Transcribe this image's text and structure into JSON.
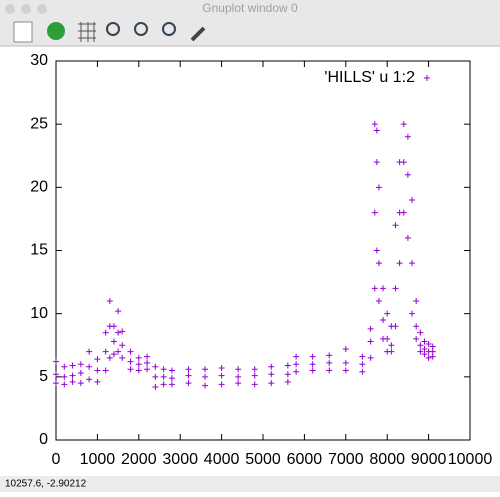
{
  "window_title": "Gnuplot window 0",
  "status": "10257.6, -2.90212",
  "chart_data": {
    "type": "scatter",
    "marker": "+",
    "color": "#9400d3",
    "legend": {
      "label": "'HILLS' u 1:2",
      "position": "top-right"
    },
    "xlim": [
      0,
      10000
    ],
    "xticks": [
      0,
      1000,
      2000,
      3000,
      4000,
      5000,
      6000,
      7000,
      8000,
      9000,
      10000
    ],
    "ylim": [
      0,
      30
    ],
    "yticks": [
      0,
      5,
      10,
      15,
      20,
      25,
      30
    ],
    "x": [
      0,
      0,
      0,
      200,
      200,
      200,
      400,
      400,
      400,
      600,
      600,
      600,
      800,
      800,
      800,
      1000,
      1000,
      1000,
      1200,
      1200,
      1200,
      1300,
      1300,
      1300,
      1400,
      1400,
      1400,
      1500,
      1500,
      1500,
      1600,
      1600,
      1600,
      1800,
      1800,
      1800,
      2000,
      2000,
      2000,
      2200,
      2200,
      2200,
      2400,
      2400,
      2400,
      2600,
      2600,
      2600,
      2800,
      2800,
      2800,
      3200,
      3200,
      3200,
      3600,
      3600,
      3600,
      4000,
      4000,
      4000,
      4400,
      4400,
      4400,
      4800,
      4800,
      4800,
      5200,
      5200,
      5200,
      5600,
      5600,
      5600,
      5800,
      5800,
      5800,
      6200,
      6200,
      6200,
      6600,
      6600,
      6600,
      7000,
      7000,
      7000,
      7400,
      7400,
      7400,
      7600,
      7600,
      7600,
      7700,
      7700,
      7700,
      7750,
      7750,
      7750,
      7800,
      7800,
      7800,
      7900,
      7900,
      7900,
      8000,
      8000,
      8000,
      8100,
      8100,
      8100,
      8200,
      8200,
      8200,
      8300,
      8300,
      8300,
      8400,
      8400,
      8400,
      8500,
      8500,
      8500,
      8600,
      8600,
      8600,
      8700,
      8700,
      8700,
      8800,
      8800,
      8800,
      8900,
      8900,
      8900,
      9000,
      9000,
      9000,
      9100,
      9100,
      9100
    ],
    "values": [
      4.5,
      5.2,
      6.2,
      4.4,
      5.0,
      5.8,
      4.6,
      5.1,
      5.9,
      4.5,
      5.3,
      6.0,
      4.8,
      5.8,
      7.0,
      4.6,
      5.5,
      6.4,
      5.5,
      7.0,
      8.5,
      6.5,
      9.0,
      11.0,
      6.8,
      7.8,
      9.0,
      7.0,
      8.5,
      10.2,
      6.5,
      7.5,
      8.6,
      5.6,
      6.2,
      7.0,
      5.5,
      6.0,
      6.5,
      5.6,
      6.1,
      6.6,
      4.2,
      5.0,
      5.8,
      4.4,
      5.0,
      5.6,
      4.4,
      4.9,
      5.5,
      4.5,
      5.1,
      5.6,
      4.3,
      5.0,
      5.6,
      4.4,
      5.1,
      5.7,
      4.5,
      5.0,
      5.6,
      4.4,
      5.1,
      5.6,
      4.5,
      5.2,
      5.8,
      4.6,
      5.2,
      5.9,
      5.4,
      6.0,
      6.6,
      5.5,
      6.0,
      6.6,
      5.5,
      6.1,
      6.7,
      5.5,
      6.1,
      7.2,
      5.4,
      6.0,
      6.6,
      6.5,
      7.8,
      8.8,
      12,
      18,
      25,
      15,
      22,
      24.5,
      11,
      14,
      20,
      8,
      9.5,
      12,
      7,
      8,
      10,
      7,
      7.5,
      9,
      9,
      12,
      17,
      14,
      18,
      22,
      18,
      22,
      25,
      16,
      21,
      24,
      10,
      14,
      19,
      8,
      9,
      11,
      7,
      7.5,
      8.5,
      6.8,
      7.2,
      7.8,
      6.5,
      7.0,
      7.6,
      6.6,
      7.0,
      7.4
    ]
  }
}
